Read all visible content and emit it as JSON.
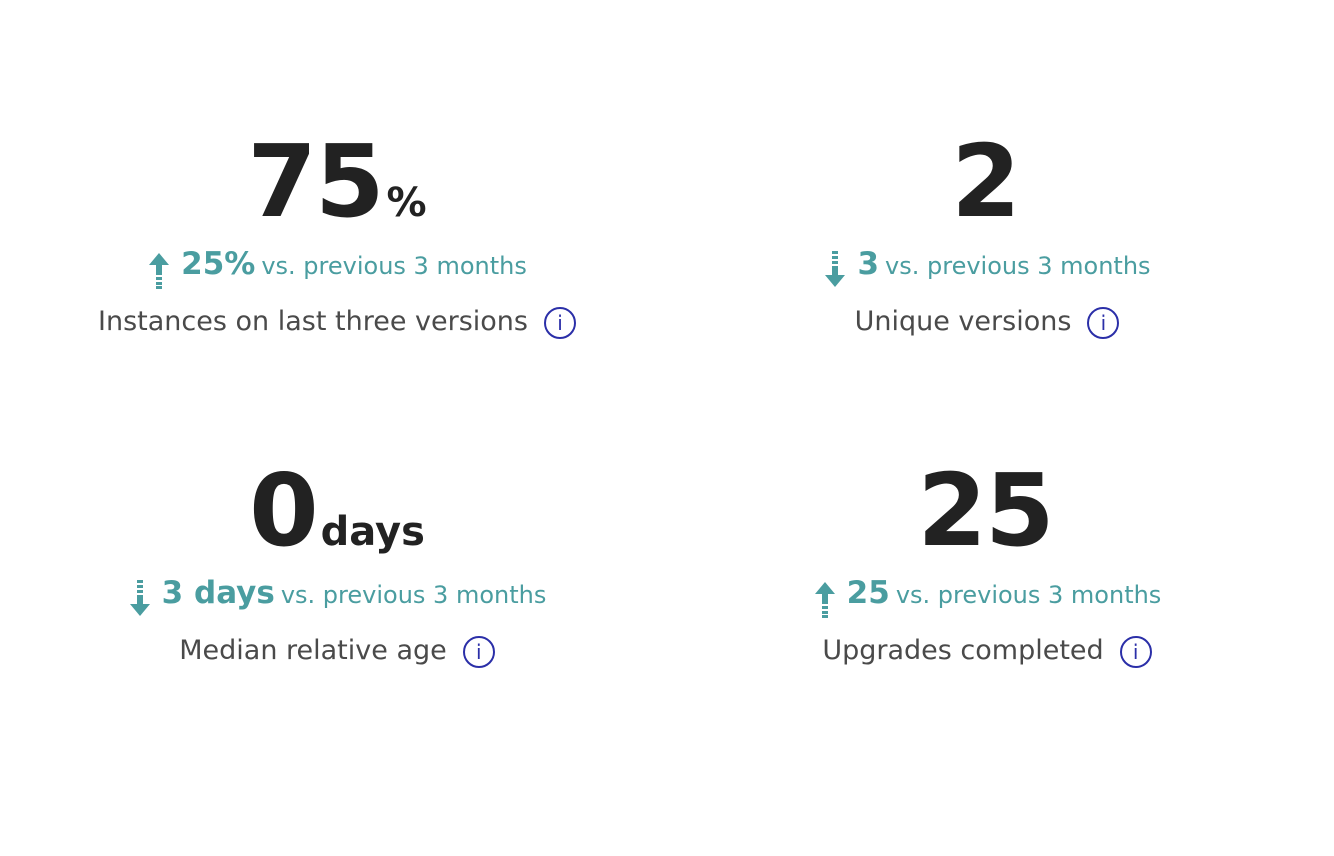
{
  "colors": {
    "accent": "#4a9da0",
    "value": "#222222",
    "label": "#4a4a4a",
    "info": "#2b2fa8"
  },
  "metrics": [
    {
      "value": "75",
      "unit": "%",
      "direction": "up",
      "arrow_icon": "arrow-up-icon",
      "delta": "25%",
      "comparison": "vs. previous 3 months",
      "label": "Instances on last three versions",
      "info": "i"
    },
    {
      "value": "2",
      "unit": "",
      "direction": "down",
      "arrow_icon": "arrow-down-icon",
      "delta": "3",
      "comparison": "vs. previous 3 months",
      "label": "Unique versions",
      "info": "i"
    },
    {
      "value": "0",
      "unit": "days",
      "direction": "down",
      "arrow_icon": "arrow-down-icon",
      "delta": "3 days",
      "comparison": "vs. previous 3 months",
      "label": "Median relative age",
      "info": "i"
    },
    {
      "value": "25",
      "unit": "",
      "direction": "up",
      "arrow_icon": "arrow-up-icon",
      "delta": "25",
      "comparison": "vs. previous 3 months",
      "label": "Upgrades completed",
      "info": "i"
    }
  ]
}
